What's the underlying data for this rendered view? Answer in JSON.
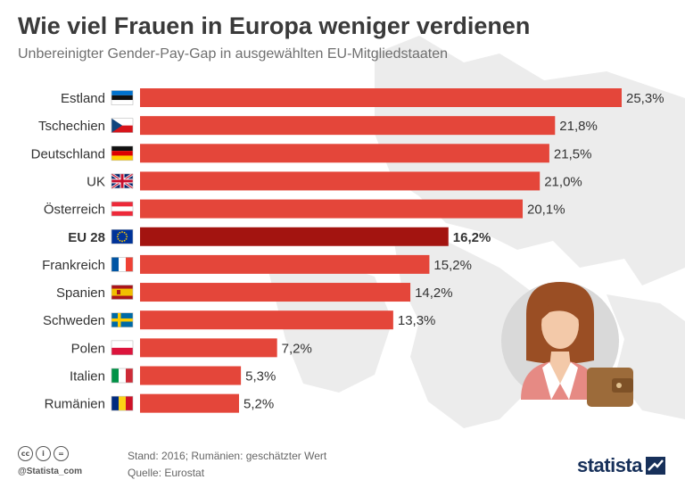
{
  "header": {
    "title": "Wie viel Frauen in Europa weniger verdienen",
    "subtitle": "Unbereinigter Gender-Pay-Gap in ausgewählten EU-Mitgliedstaaten"
  },
  "chart_data": {
    "type": "bar",
    "orientation": "horizontal",
    "categories": [
      "Estland",
      "Tschechien",
      "Deutschland",
      "UK",
      "Österreich",
      "EU 28",
      "Frankreich",
      "Spanien",
      "Schweden",
      "Polen",
      "Italien",
      "Rumänien"
    ],
    "values": [
      25.3,
      21.8,
      21.5,
      21.0,
      20.1,
      16.2,
      15.2,
      14.2,
      13.3,
      7.2,
      5.3,
      5.2
    ],
    "value_labels": [
      "25,3%",
      "21,8%",
      "21,5%",
      "21,0%",
      "20,1%",
      "16,2%",
      "15,2%",
      "14,2%",
      "13,3%",
      "7,2%",
      "5,3%",
      "5,2%"
    ],
    "highlight_category": "EU 28",
    "xlim": [
      0,
      26
    ],
    "colors": {
      "bar": "#e4463a",
      "highlight": "#a31410"
    },
    "flags": [
      "ee",
      "cz",
      "de",
      "gb",
      "at",
      "eu",
      "fr",
      "es",
      "se",
      "pl",
      "it",
      "ro"
    ],
    "grid": false
  },
  "footer": {
    "license_icons": [
      "cc",
      "i",
      "="
    ],
    "credit": "@Statista_com",
    "stand": "Stand: 2016; Rumänien: geschätzter Wert",
    "quelle": "Quelle: Eurostat",
    "brand": "statista"
  }
}
